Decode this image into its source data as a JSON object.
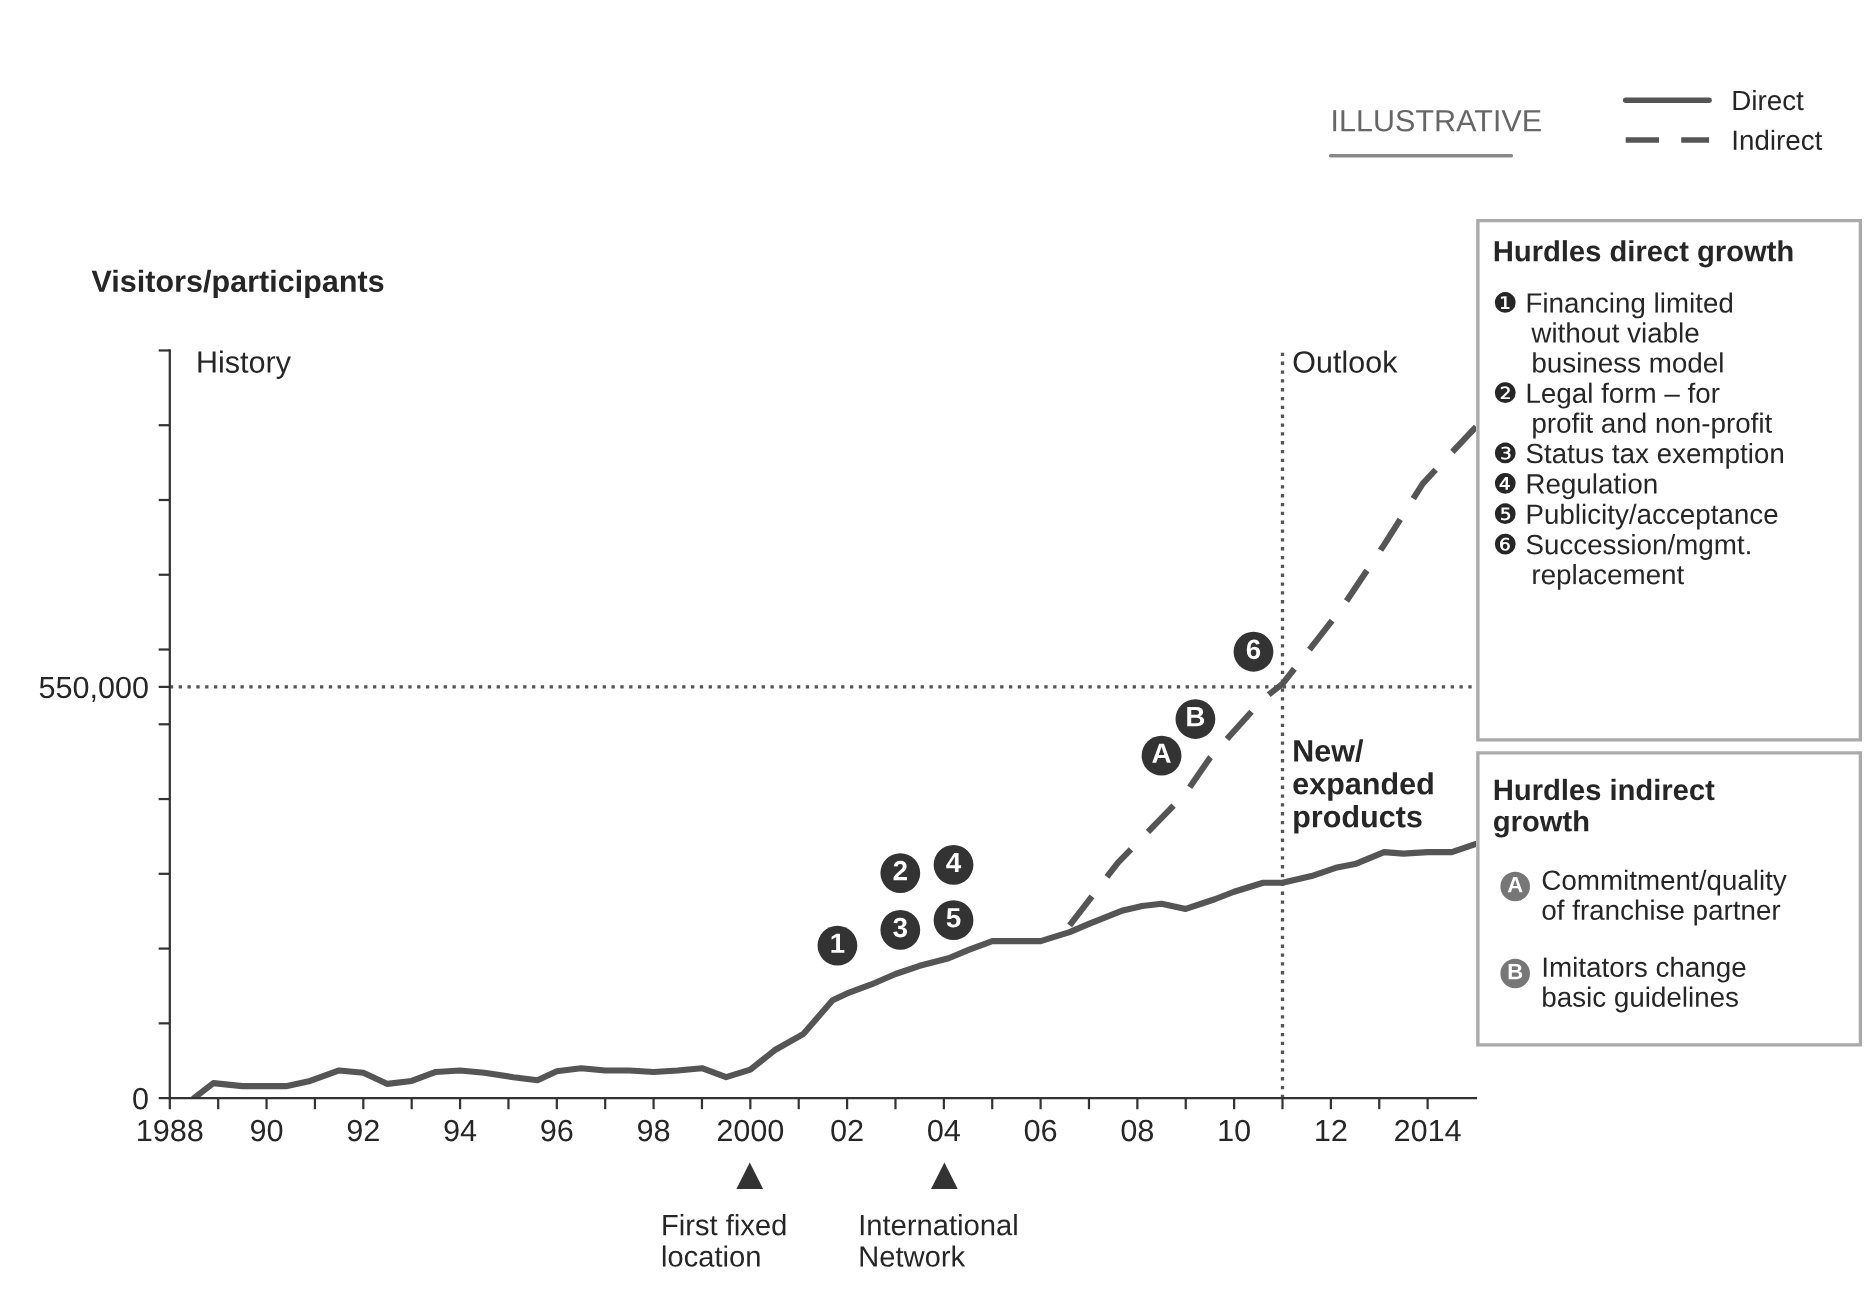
{
  "chart_data": {
    "type": "line",
    "ylabel": "Visitors/participants",
    "x": [
      1988.5,
      1988.9,
      1989.5,
      1990.4,
      1990.9,
      1991.5,
      1992,
      1992.5,
      1993,
      1993.5,
      1994,
      1994.5,
      1995.1,
      1995.6,
      1996,
      1996.5,
      1997,
      1997.5,
      1998,
      1998.5,
      1999,
      1999.5,
      2000,
      2000.5,
      2001.1,
      2001.7,
      2002,
      2002.5,
      2003,
      2003.5,
      2004.1,
      2004.5,
      2005,
      2005.5,
      2006,
      2006.6,
      2007,
      2007.7,
      2008.1,
      2008.5,
      2009,
      2009.6,
      2010,
      2010.6,
      2011,
      2011.6,
      2012.1,
      2012.5,
      2013.1,
      2013.5,
      2014,
      2014.5,
      2015
    ],
    "series": [
      {
        "name": "Direct",
        "color": "#555555",
        "line_style": "solid",
        "values": [
          0,
          20000,
          16000,
          16000,
          23000,
          37000,
          34000,
          19000,
          23000,
          35000,
          37000,
          34000,
          28000,
          24000,
          36000,
          40000,
          37000,
          37000,
          35000,
          37000,
          40000,
          28000,
          38000,
          64000,
          86000,
          131000,
          140000,
          152000,
          166000,
          177000,
          187000,
          198000,
          210000,
          210000,
          210000,
          222000,
          233000,
          251000,
          257000,
          260000,
          253000,
          266000,
          276000,
          288000,
          288000,
          297000,
          308000,
          313000,
          329000,
          327000,
          329000,
          329000,
          340000
        ]
      },
      {
        "name": "Indirect",
        "color": "#555555",
        "line_style": "dashed",
        "x": [
          2006.6,
          2007.6,
          2009,
          2009.5,
          2010.6,
          2011,
          2012.2,
          2013.1,
          2013.9,
          2015
        ],
        "values": [
          231000,
          315000,
          408000,
          455000,
          534000,
          554000,
          653000,
          740000,
          822000,
          898000
        ]
      }
    ],
    "xlim": [
      1988,
      2015
    ],
    "xticks": [
      {
        "value": 1988,
        "label": "1988"
      },
      {
        "value": 1989,
        "label": null
      },
      {
        "value": 1990,
        "label": "90"
      },
      {
        "value": 1991,
        "label": null
      },
      {
        "value": 1992,
        "label": "92"
      },
      {
        "value": 1993,
        "label": null
      },
      {
        "value": 1994,
        "label": "94"
      },
      {
        "value": 1995,
        "label": null
      },
      {
        "value": 1996,
        "label": "96"
      },
      {
        "value": 1997,
        "label": null
      },
      {
        "value": 1998,
        "label": "98"
      },
      {
        "value": 1999,
        "label": null
      },
      {
        "value": 2000,
        "label": "2000"
      },
      {
        "value": 2001,
        "label": null
      },
      {
        "value": 2002,
        "label": "02"
      },
      {
        "value": 2003,
        "label": null
      },
      {
        "value": 2004,
        "label": "04"
      },
      {
        "value": 2005,
        "label": null
      },
      {
        "value": 2006,
        "label": "06"
      },
      {
        "value": 2007,
        "label": null
      },
      {
        "value": 2008,
        "label": "08"
      },
      {
        "value": 2009,
        "label": null
      },
      {
        "value": 2010,
        "label": "10"
      },
      {
        "value": 2011,
        "label": null
      },
      {
        "value": 2012,
        "label": "12"
      },
      {
        "value": 2013,
        "label": null
      },
      {
        "value": 2014,
        "label": "2014"
      }
    ],
    "ylim": [
      0,
      1000000
    ],
    "yticks": [
      0,
      {
        "value": 100000,
        "label": null
      },
      {
        "value": 200000,
        "label": null
      },
      {
        "value": 300000,
        "label": null
      },
      {
        "value": 400000,
        "label": null
      },
      {
        "value": 500000,
        "label": null
      },
      {
        "value": 550000,
        "label": "550,000"
      },
      {
        "value": 600000,
        "label": null
      },
      {
        "value": 700000,
        "label": null
      },
      {
        "value": 800000,
        "label": null
      },
      {
        "value": 900000,
        "label": null
      },
      {
        "value": 1000000,
        "label": null
      }
    ],
    "ref_lines": [
      {
        "axis": "x",
        "value": 2011,
        "label": "Outlook",
        "line_style": "dotted",
        "color": "#555555"
      },
      {
        "axis": "y",
        "value": 550000,
        "label": null,
        "line_style": "dotted",
        "color": "#555555"
      }
    ],
    "marker": "none",
    "grid": false,
    "legend": "top right",
    "annotations": [
      "History",
      "ILLUSTRATIVE",
      {
        "text": "New/\nexpanded\nproducts",
        "x": 2011.2,
        "y": 480000
      },
      {
        "text": "1",
        "x": 2001.8,
        "y": 204000
      },
      {
        "text": "2",
        "x": 2003.1,
        "y": 301000
      },
      {
        "text": "3",
        "x": 2003.1,
        "y": 225000
      },
      {
        "text": "4",
        "x": 2004.2,
        "y": 312000
      },
      {
        "text": "5",
        "x": 2004.2,
        "y": 238000
      },
      {
        "text": "6",
        "x": 2010.4,
        "y": 597000
      },
      {
        "text": "A",
        "x": 2008.5,
        "y": 458000
      },
      {
        "text": "B",
        "x": 2009.2,
        "y": 507000
      },
      "First fixed\nlocation",
      "International\nNetwork",
      "Hurdles direct growth",
      "❶ Financing limited\n     without viable\n     business model\n❷ Legal form – for\n     profit and non-profit\n❸ Status tax exemption\n❹ Regulation\n❺ Publicity/acceptance\n❻ Succession/mgmt.\n     replacement",
      "Hurdles indirect\ngrowth",
      "A",
      "Commitment/quality\nof franchise partner",
      "B",
      "Imitators change\nbasic guidelines"
    ]
  }
}
